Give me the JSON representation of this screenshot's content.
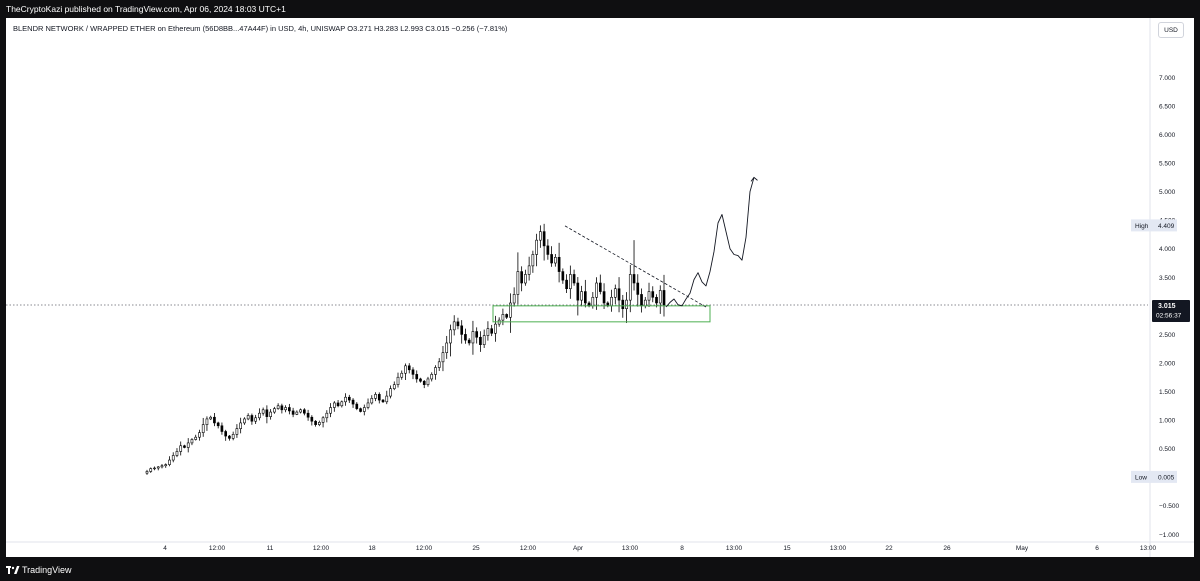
{
  "header": {
    "published_text": "TheCryptoKazi published on TradingView.com, Apr 06, 2024 18:03 UTC+1"
  },
  "legend": {
    "symbol_text": "BLENDR NETWORK / WRAPPED ETHER on Ethereum (56D8BB...47A44F) in USD, 4h, UNISWAP  O3.271  H3.283  L2.993  C3.015  −0.256 (−7.81%)"
  },
  "currency_button": {
    "label": "USD"
  },
  "footer": {
    "brand": "TradingView"
  },
  "colors": {
    "candle": "#000000",
    "zone_border": "#4caf50",
    "price_tag_bg": "#131722",
    "label_bg": "#e3e8f3",
    "bar_bg": "#0f0f11"
  },
  "chart_data": {
    "type": "candlestick",
    "y_axis": {
      "ticks": [
        7.0,
        6.5,
        6.0,
        5.5,
        5.0,
        4.5,
        4.0,
        3.5,
        3.0,
        2.5,
        2.0,
        1.5,
        1.0,
        0.5,
        0.0,
        -0.5,
        -1.0
      ],
      "tick_labels": [
        "7.000",
        "6.500",
        "6.000",
        "5.500",
        "5.000",
        "4.500",
        "4.000",
        "3.500",
        "3.000",
        "2.500",
        "2.000",
        "1.500",
        "1.000",
        "0.500",
        "0.000",
        "−0.500",
        "−1.000"
      ],
      "range": [
        -1.1,
        7.55
      ]
    },
    "x_axis": {
      "labels": [
        "4",
        "12:00",
        "11",
        "12:00",
        "18",
        "12:00",
        "25",
        "12:00",
        "Apr",
        "13:00",
        "8",
        "13:00",
        "15",
        "13:00",
        "22",
        "26",
        "May",
        "6",
        "13:00"
      ]
    },
    "ohlc": {
      "open": 3.271,
      "high": 3.283,
      "low": 2.993,
      "close": 3.015,
      "change": "−0.256",
      "change_pct": "−7.81%"
    },
    "price_tag": {
      "price": "3.015",
      "countdown": "02:56:37",
      "value": 3.015
    },
    "high_marker": {
      "label": "High",
      "value_text": "4.409",
      "value": 4.409
    },
    "low_marker": {
      "label": "Low",
      "value_text": "0.005",
      "value": 0.005
    },
    "close_series": [
      0.1,
      0.15,
      0.16,
      0.18,
      0.2,
      0.22,
      0.3,
      0.38,
      0.45,
      0.55,
      0.52,
      0.6,
      0.66,
      0.7,
      0.78,
      0.92,
      1.02,
      1.05,
      0.95,
      0.9,
      0.8,
      0.72,
      0.68,
      0.75,
      0.85,
      0.95,
      1.02,
      1.08,
      0.98,
      1.04,
      1.12,
      1.18,
      1.06,
      1.14,
      1.2,
      1.25,
      1.18,
      1.22,
      1.16,
      1.1,
      1.14,
      1.18,
      1.12,
      1.05,
      0.98,
      0.92,
      0.96,
      1.04,
      1.12,
      1.22,
      1.3,
      1.25,
      1.32,
      1.4,
      1.35,
      1.28,
      1.2,
      1.15,
      1.22,
      1.3,
      1.38,
      1.45,
      1.35,
      1.32,
      1.42,
      1.55,
      1.62,
      1.75,
      1.82,
      1.95,
      1.88,
      1.8,
      1.72,
      1.68,
      1.62,
      1.72,
      1.8,
      1.92,
      2.02,
      2.18,
      2.35,
      2.58,
      2.72,
      2.65,
      2.5,
      2.4,
      2.35,
      2.55,
      2.45,
      2.32,
      2.48,
      2.6,
      2.52,
      2.68,
      2.75,
      2.85,
      2.8,
      3.05,
      3.2,
      3.6,
      3.4,
      3.55,
      3.7,
      3.9,
      4.15,
      4.3,
      4.05,
      3.9,
      3.75,
      3.85,
      3.6,
      3.45,
      3.3,
      3.55,
      3.4,
      3.1,
      3.25,
      3.05,
      3.0,
      3.15,
      3.4,
      3.25,
      3.05,
      3.0,
      3.15,
      3.3,
      3.1,
      2.95,
      3.1,
      3.55,
      3.4,
      3.2,
      3.0,
      3.1,
      3.25,
      3.15,
      3.05,
      3.27,
      3.015
    ],
    "triangle_upper": {
      "from": 4.4,
      "to": 2.98
    },
    "support_zone": {
      "top": 3.0,
      "bottom": 2.72
    },
    "projection_points": [
      2.98,
      3.06,
      3.12,
      3.02,
      3.0,
      3.12,
      3.22,
      3.46,
      3.58,
      3.42,
      3.35,
      3.6,
      3.95,
      4.45,
      4.6,
      4.3,
      4.0,
      3.9,
      3.88,
      3.8,
      4.2,
      5.0,
      5.25
    ]
  }
}
